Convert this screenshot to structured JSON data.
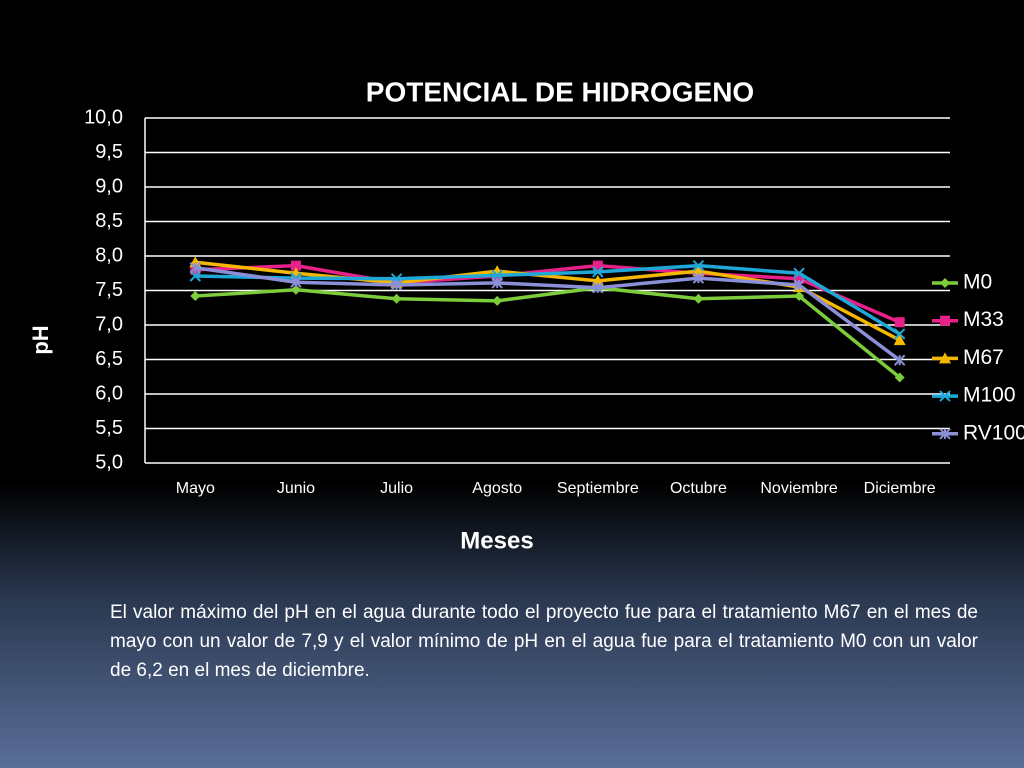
{
  "chart_data": {
    "type": "line",
    "title": "POTENCIAL DE HIDROGENO",
    "x_label": "Meses",
    "y_label": "pH",
    "categories": [
      "Mayo",
      "Junio",
      "Julio",
      "Agosto",
      "Septiembre",
      "Octubre",
      "Noviembre",
      "Diciembre"
    ],
    "ylim": [
      5,
      10
    ],
    "yticks": [
      {
        "value": 5,
        "label": "5,0"
      },
      {
        "value": 5.5,
        "label": "5,5"
      },
      {
        "value": 6,
        "label": "6,0"
      },
      {
        "value": 6.5,
        "label": "6,5"
      },
      {
        "value": 7,
        "label": "7,0"
      },
      {
        "value": 7.5,
        "label": "7,5"
      },
      {
        "value": 8,
        "label": "8,0"
      },
      {
        "value": 8.5,
        "label": "8,5"
      },
      {
        "value": 9,
        "label": "9,0"
      },
      {
        "value": 9.5,
        "label": "9,5"
      },
      {
        "value": 10,
        "label": "10,0"
      }
    ],
    "grid": true,
    "legend": "right",
    "series": [
      {
        "name": "M0",
        "color": "#7ccc3c",
        "marker": "diamond",
        "values": [
          7.42,
          7.51,
          7.38,
          7.35,
          7.54,
          7.38,
          7.42,
          6.24
        ]
      },
      {
        "name": "M33",
        "color": "#e8208a",
        "marker": "square",
        "values": [
          7.8,
          7.86,
          7.61,
          7.71,
          7.86,
          7.75,
          7.67,
          7.04
        ]
      },
      {
        "name": "M67",
        "color": "#f5b800",
        "marker": "triangle",
        "values": [
          7.91,
          7.75,
          7.61,
          7.78,
          7.64,
          7.78,
          7.55,
          6.78
        ]
      },
      {
        "name": "M100",
        "color": "#1ea8d8",
        "marker": "x",
        "values": [
          7.71,
          7.68,
          7.67,
          7.72,
          7.77,
          7.86,
          7.75,
          6.87
        ]
      },
      {
        "name": "RV100",
        "color": "#8a8fd8",
        "marker": "star",
        "values": [
          7.83,
          7.62,
          7.58,
          7.61,
          7.54,
          7.68,
          7.58,
          6.49
        ]
      }
    ]
  },
  "caption": "El valor máximo del pH en el agua durante todo el proyecto  fue para el tratamiento M67 en el mes de mayo con un valor de 7,9  y el valor  mínimo de pH en el agua  fue para el tratamiento M0 con un valor de 6,2 en el mes de diciembre."
}
